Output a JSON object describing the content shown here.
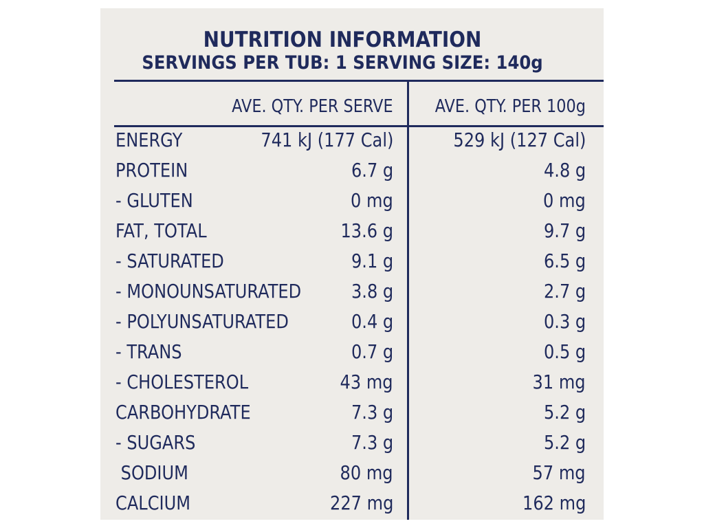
{
  "label": {
    "title": "NUTRITION INFORMATION",
    "subtitle": "SERVINGS PER TUB: 1  SERVING SIZE: 140g",
    "col_serve": "AVE. QTY. PER SERVE",
    "col_100g": "AVE. QTY. PER 100g"
  },
  "rows": [
    {
      "name": "ENERGY",
      "serve": "741 kJ (177 Cal)",
      "per100": "529 kJ (127 Cal)"
    },
    {
      "name": "PROTEIN",
      "serve": "6.7 g",
      "per100": "4.8 g"
    },
    {
      "name": "- GLUTEN",
      "serve": "0 mg",
      "per100": "0 mg"
    },
    {
      "name": "FAT, TOTAL",
      "serve": "13.6 g",
      "per100": "9.7 g"
    },
    {
      "name": "- SATURATED",
      "serve": "9.1 g",
      "per100": "6.5 g"
    },
    {
      "name": "- MONOUNSATURATED",
      "serve": "3.8 g",
      "per100": "2.7 g"
    },
    {
      "name": "- POLYUNSATURATED",
      "serve": "0.4 g",
      "per100": "0.3 g"
    },
    {
      "name": "- TRANS",
      "serve": "0.7 g",
      "per100": "0.5 g"
    },
    {
      "name": "- CHOLESTEROL",
      "serve": "43 mg",
      "per100": "31 mg"
    },
    {
      "name": "CARBOHYDRATE",
      "serve": "7.3 g",
      "per100": "5.2 g"
    },
    {
      "name": "- SUGARS",
      "serve": "7.3 g",
      "per100": "5.2 g"
    },
    {
      "name": " SODIUM",
      "serve": "80 mg",
      "per100": "57 mg"
    },
    {
      "name": "CALCIUM",
      "serve": "227 mg",
      "per100": "162 mg"
    }
  ],
  "colors": {
    "ink": "#1f2a5c",
    "panel": "#eeece8"
  }
}
